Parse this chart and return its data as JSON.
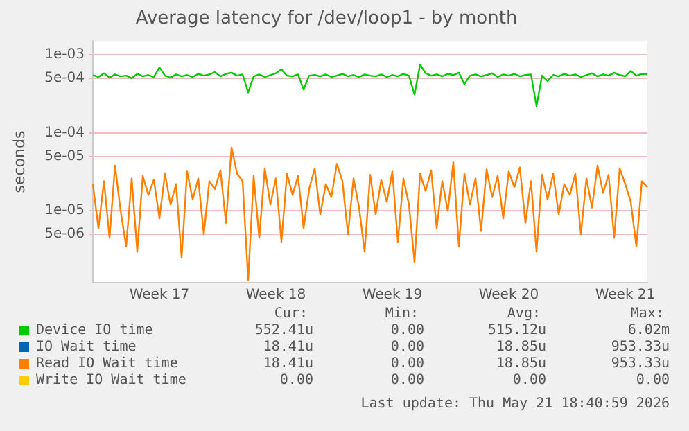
{
  "chart_data": {
    "type": "line",
    "title": "Average latency for /dev/loop1 - by month",
    "ylabel": "seconds",
    "log": "y",
    "grid": "y",
    "legend": "bottom",
    "marker": "none",
    "line_style": "solid",
    "ylim": [
      1.2e-06,
      0.0015
    ],
    "yticks": [
      {
        "value": 0.001,
        "label": "1e-03"
      },
      {
        "value": 0.0005,
        "label": "5e-04"
      },
      {
        "value": 0.0001,
        "label": "1e-04"
      },
      {
        "value": 5e-05,
        "label": "5e-05"
      },
      {
        "value": 1e-05,
        "label": "1e-05"
      },
      {
        "value": 5e-06,
        "label": "5e-06"
      }
    ],
    "categories": [
      null,
      null,
      null,
      null,
      null,
      null,
      null,
      null,
      null,
      null,
      null,
      null,
      "Week 17",
      null,
      null,
      null,
      null,
      null,
      null,
      null,
      null,
      null,
      null,
      null,
      null,
      null,
      null,
      null,
      null,
      null,
      null,
      null,
      null,
      "Week 18",
      null,
      null,
      null,
      null,
      null,
      null,
      null,
      null,
      null,
      null,
      null,
      null,
      null,
      null,
      null,
      null,
      null,
      null,
      null,
      null,
      "Week 19",
      null,
      null,
      null,
      null,
      null,
      null,
      null,
      null,
      null,
      null,
      null,
      null,
      null,
      null,
      null,
      null,
      null,
      null,
      null,
      null,
      "Week 20",
      null,
      null,
      null,
      null,
      null,
      null,
      null,
      null,
      null,
      null,
      null,
      null,
      null,
      null,
      null,
      null,
      null,
      null,
      null,
      null,
      "Week 21",
      null,
      null,
      null,
      null
    ],
    "series": [
      {
        "name": "Device IO time",
        "color": "#00cc00",
        "values": [
          0.00055,
          0.00052,
          0.00058,
          0.00051,
          0.00056,
          0.00053,
          0.00054,
          0.0005,
          0.00057,
          0.00053,
          0.00055,
          0.00052,
          0.00069,
          0.00054,
          0.00051,
          0.00056,
          0.00053,
          0.00055,
          0.00052,
          0.00057,
          0.00054,
          0.00056,
          0.0006,
          0.00053,
          0.00057,
          0.00059,
          0.00054,
          0.00056,
          0.00033,
          0.00053,
          0.00056,
          0.00052,
          0.00055,
          0.00058,
          0.00065,
          0.00054,
          0.00053,
          0.00056,
          0.00036,
          0.00054,
          0.00055,
          0.00053,
          0.00056,
          0.00052,
          0.00054,
          0.00057,
          0.00053,
          0.00055,
          0.00052,
          0.00056,
          0.00054,
          0.00053,
          0.00056,
          0.00052,
          0.00055,
          0.00053,
          0.00057,
          0.00054,
          0.00031,
          0.00075,
          0.00058,
          0.00054,
          0.00056,
          0.00053,
          0.00057,
          0.00055,
          0.00059,
          0.00042,
          0.00054,
          0.00056,
          0.00053,
          0.00055,
          0.00058,
          0.00052,
          0.00056,
          0.00054,
          0.00057,
          0.00053,
          0.00055,
          0.00056,
          0.00022,
          0.00054,
          0.00046,
          0.00055,
          0.00053,
          0.00057,
          0.00054,
          0.00056,
          0.00052,
          0.00055,
          0.00058,
          0.00053,
          0.00056,
          0.00054,
          0.00059,
          0.00055,
          0.00053,
          0.00062,
          0.00054,
          0.00057,
          0.00056
        ]
      },
      {
        "name": "IO Wait time",
        "color": "#0066b3",
        "values": [
          null,
          null,
          null,
          null,
          null,
          null,
          null,
          null,
          null,
          null,
          null,
          null,
          null,
          null,
          null,
          null,
          null,
          null,
          null,
          null,
          null,
          null,
          null,
          null,
          null,
          null,
          null,
          null,
          null,
          null,
          null,
          null,
          null,
          null,
          null,
          null,
          null,
          null,
          null,
          null,
          null,
          null,
          null,
          null,
          null,
          null,
          null,
          null,
          null,
          null,
          null,
          null,
          null,
          null,
          null,
          null,
          null,
          null,
          null,
          null,
          null,
          null,
          null,
          null,
          null,
          null,
          null,
          null,
          null,
          null,
          null,
          null,
          null,
          null,
          null,
          null,
          null,
          null,
          null,
          null,
          null,
          null,
          null,
          null,
          null,
          null,
          null,
          null,
          null,
          null,
          null,
          null,
          null,
          null,
          null,
          null,
          null,
          null,
          null,
          null,
          null
        ]
      },
      {
        "name": "Read IO Wait time",
        "color": "#ff8000",
        "values": [
          2.2e-05,
          6e-06,
          2.4e-05,
          4.5e-06,
          3.8e-05,
          1e-05,
          3.5e-06,
          2.6e-05,
          3e-06,
          2.8e-05,
          1.6e-05,
          2.5e-05,
          8e-06,
          3e-05,
          1.2e-05,
          2.2e-05,
          2.5e-06,
          3.2e-05,
          1.4e-05,
          2.6e-05,
          5e-06,
          2.4e-05,
          1.9e-05,
          3.3e-05,
          7e-06,
          6.5e-05,
          3e-05,
          2.4e-05,
          1.3e-06,
          2.8e-05,
          4.5e-06,
          3.5e-05,
          1.2e-05,
          2.6e-05,
          4e-06,
          3e-05,
          1.6e-05,
          2.8e-05,
          6e-06,
          1.9e-05,
          3.5e-05,
          9e-06,
          2.2e-05,
          1.5e-05,
          4e-05,
          2.4e-05,
          5e-06,
          2.6e-05,
          1.1e-05,
          3e-06,
          2.9e-05,
          9e-06,
          2.5e-05,
          1.3e-05,
          3.2e-05,
          4e-06,
          2.6e-05,
          1.2e-05,
          2.2e-06,
          3e-05,
          1.8e-05,
          3.3e-05,
          6e-06,
          2.4e-05,
          1e-05,
          4.2e-05,
          3.5e-06,
          3e-05,
          1.2e-05,
          2.6e-05,
          5.5e-06,
          3.4e-05,
          1.5e-05,
          2.8e-05,
          8e-06,
          3.2e-05,
          2e-05,
          3.6e-05,
          7e-06,
          2.4e-05,
          3e-06,
          2.9e-05,
          1.4e-05,
          3e-05,
          9e-06,
          2.2e-05,
          1.6e-05,
          3e-05,
          5e-06,
          2.6e-05,
          1.1e-05,
          3.8e-05,
          1.7e-05,
          2.9e-05,
          4.5e-06,
          3.5e-05,
          2.2e-05,
          1.3e-05,
          3.5e-06,
          2.4e-05,
          2e-05
        ]
      },
      {
        "name": "Write IO Wait time",
        "color": "#ffcc00",
        "values": [
          null,
          null,
          null,
          null,
          null,
          null,
          null,
          null,
          null,
          null,
          null,
          null,
          null,
          null,
          null,
          null,
          null,
          null,
          null,
          null,
          null,
          null,
          null,
          null,
          null,
          null,
          null,
          null,
          null,
          null,
          null,
          null,
          null,
          null,
          null,
          null,
          null,
          null,
          null,
          null,
          null,
          null,
          null,
          null,
          null,
          null,
          null,
          null,
          null,
          null,
          null,
          null,
          null,
          null,
          null,
          null,
          null,
          null,
          null,
          null,
          null,
          null,
          null,
          null,
          null,
          null,
          null,
          null,
          null,
          null,
          null,
          null,
          null,
          null,
          null,
          null,
          null,
          null,
          null,
          null,
          null,
          null,
          null,
          null,
          null,
          null,
          null,
          null,
          null,
          null,
          null,
          null,
          null,
          null,
          null,
          null,
          null,
          null,
          null,
          null,
          null
        ]
      }
    ],
    "annotations": [
      "Cur:",
      "Min:",
      "Avg:",
      "Max:",
      "552.41u",
      "0.00",
      "515.12u",
      "6.02m",
      "18.41u",
      "0.00",
      "18.85u",
      "953.33u",
      "18.41u",
      "0.00",
      "18.85u",
      "953.33u",
      "0.00",
      "0.00",
      "0.00",
      "0.00",
      "Last update: Thu May 21 18:40:59 2026"
    ]
  }
}
